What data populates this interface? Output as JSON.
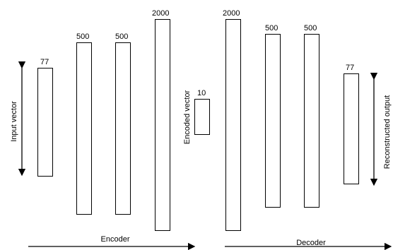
{
  "layers": [
    {
      "id": "enc-in",
      "size": "77"
    },
    {
      "id": "enc-h1",
      "size": "500"
    },
    {
      "id": "enc-h2",
      "size": "500"
    },
    {
      "id": "enc-h3",
      "size": "2000"
    },
    {
      "id": "code",
      "size": "10"
    },
    {
      "id": "dec-h1",
      "size": "2000"
    },
    {
      "id": "dec-h2",
      "size": "500"
    },
    {
      "id": "dec-h3",
      "size": "500"
    },
    {
      "id": "dec-out",
      "size": "77"
    }
  ],
  "labels": {
    "input": "Input vector",
    "encoded": "Encoded vector",
    "output": "Reconstructed output",
    "encoder": "Encoder",
    "decoder": "Decoder"
  }
}
